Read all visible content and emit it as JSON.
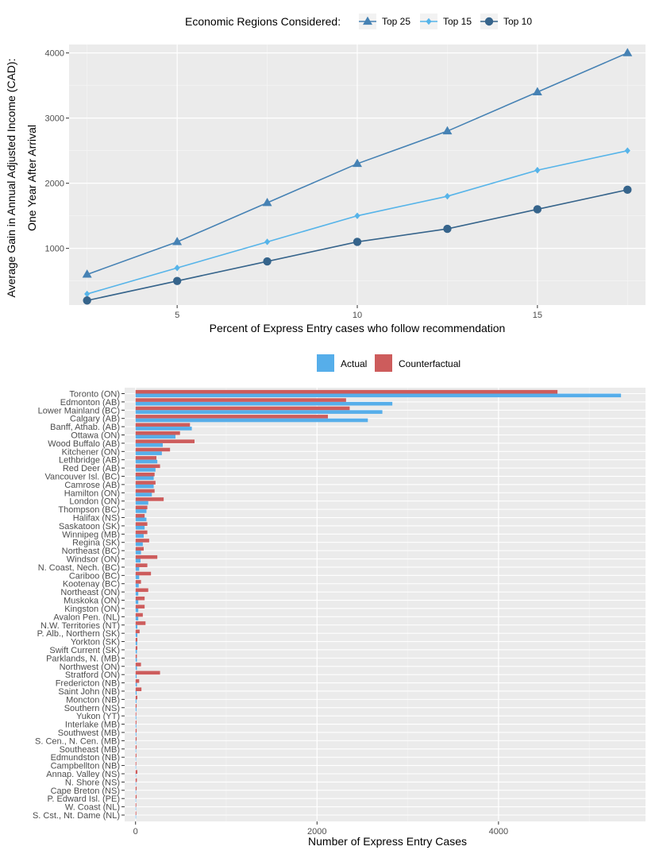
{
  "chart_data": [
    {
      "type": "line",
      "legend_title": "Economic Regions Considered:",
      "legend_position": "top",
      "xlabel": "Percent of Express Entry cases who follow recommendation",
      "ylabel_line1": "Average Gain in Annual Adjusted Income (CAD):",
      "ylabel_line2": "One Year After Arrival",
      "xlim": [
        2,
        18
      ],
      "ylim": [
        130,
        4130
      ],
      "x_ticks": [
        5,
        10,
        15
      ],
      "y_ticks": [
        1000,
        2000,
        3000,
        4000
      ],
      "x": [
        2.5,
        5,
        7.5,
        10,
        12.5,
        15,
        17.5
      ],
      "series": [
        {
          "name": "Top 25",
          "marker": "triangle",
          "color": "#4682b4",
          "values": [
            600,
            1100,
            1700,
            2300,
            2800,
            3400,
            4000
          ]
        },
        {
          "name": "Top 15",
          "marker": "diamond",
          "color": "#56b4e9",
          "values": [
            300,
            700,
            1100,
            1500,
            1800,
            2200,
            2500
          ]
        },
        {
          "name": "Top 10",
          "marker": "circle",
          "color": "#36648b",
          "values": [
            200,
            500,
            800,
            1100,
            1300,
            1600,
            1900
          ]
        }
      ]
    },
    {
      "type": "bar",
      "orientation": "horizontal",
      "legend_position": "top",
      "xlabel": "Number of Express Entry Cases",
      "xlim": [
        -120,
        5620
      ],
      "x_ticks": [
        0,
        2000,
        4000
      ],
      "series": [
        {
          "name": "Actual",
          "color": "#56aeea"
        },
        {
          "name": "Counterfactual",
          "color": "#cd5c5c"
        }
      ],
      "categories": [
        "Toronto (ON)",
        "Edmonton (AB)",
        "Lower Mainland (BC)",
        "Calgary (AB)",
        "Banff, Athab. (AB)",
        "Ottawa (ON)",
        "Wood Buffalo (AB)",
        "Kitchener (ON)",
        "Lethbridge (AB)",
        "Red Deer (AB)",
        "Vancouver Isl. (BC)",
        "Camrose (AB)",
        "Hamilton (ON)",
        "London (ON)",
        "Thompson (BC)",
        "Halifax (NS)",
        "Saskatoon (SK)",
        "Winnipeg (MB)",
        "Regina (SK)",
        "Northeast (BC)",
        "Windsor (ON)",
        "N. Coast, Nech. (BC)",
        "Cariboo (BC)",
        "Kootenay (BC)",
        "Northeast (ON)",
        "Muskoka (ON)",
        "Kingston (ON)",
        "Avalon Pen. (NL)",
        "N.W. Territories (NT)",
        "P. Alb., Northern (SK)",
        "Yorkton (SK)",
        "Swift Current (SK)",
        "Parklands, N. (MB)",
        "Northwest (ON)",
        "Stratford (ON)",
        "Fredericton (NB)",
        "Saint John (NB)",
        "Moncton (NB)",
        "Southern (NS)",
        "Yukon (YT)",
        "Interlake (MB)",
        "Southwest (MB)",
        "S. Cen., N. Cen. (MB)",
        "Southeast (MB)",
        "Edmundston (NB)",
        "Campbellton (NB)",
        "Annap. Valley (NS)",
        "N. Shore (NS)",
        "Cape Breton (NS)",
        "P. Edward Isl. (PE)",
        "W. Coast (NL)",
        "S. Cst., Nt. Dame (NL)"
      ],
      "actual": [
        5350,
        2830,
        2720,
        2560,
        620,
        440,
        300,
        290,
        240,
        220,
        200,
        200,
        180,
        140,
        120,
        120,
        100,
        90,
        80,
        60,
        55,
        40,
        40,
        35,
        30,
        30,
        30,
        30,
        20,
        20,
        18,
        15,
        15,
        15,
        12,
        15,
        12,
        10,
        10,
        8,
        8,
        8,
        6,
        6,
        5,
        5,
        5,
        5,
        5,
        5,
        4,
        3
      ],
      "counterfactual": [
        4650,
        2320,
        2360,
        2120,
        600,
        490,
        650,
        380,
        230,
        270,
        210,
        220,
        210,
        310,
        130,
        100,
        130,
        130,
        150,
        90,
        240,
        130,
        170,
        60,
        140,
        100,
        100,
        80,
        110,
        45,
        20,
        20,
        15,
        60,
        270,
        40,
        65,
        20,
        12,
        8,
        10,
        12,
        12,
        12,
        10,
        8,
        20,
        15,
        12,
        12,
        8,
        8
      ]
    }
  ]
}
